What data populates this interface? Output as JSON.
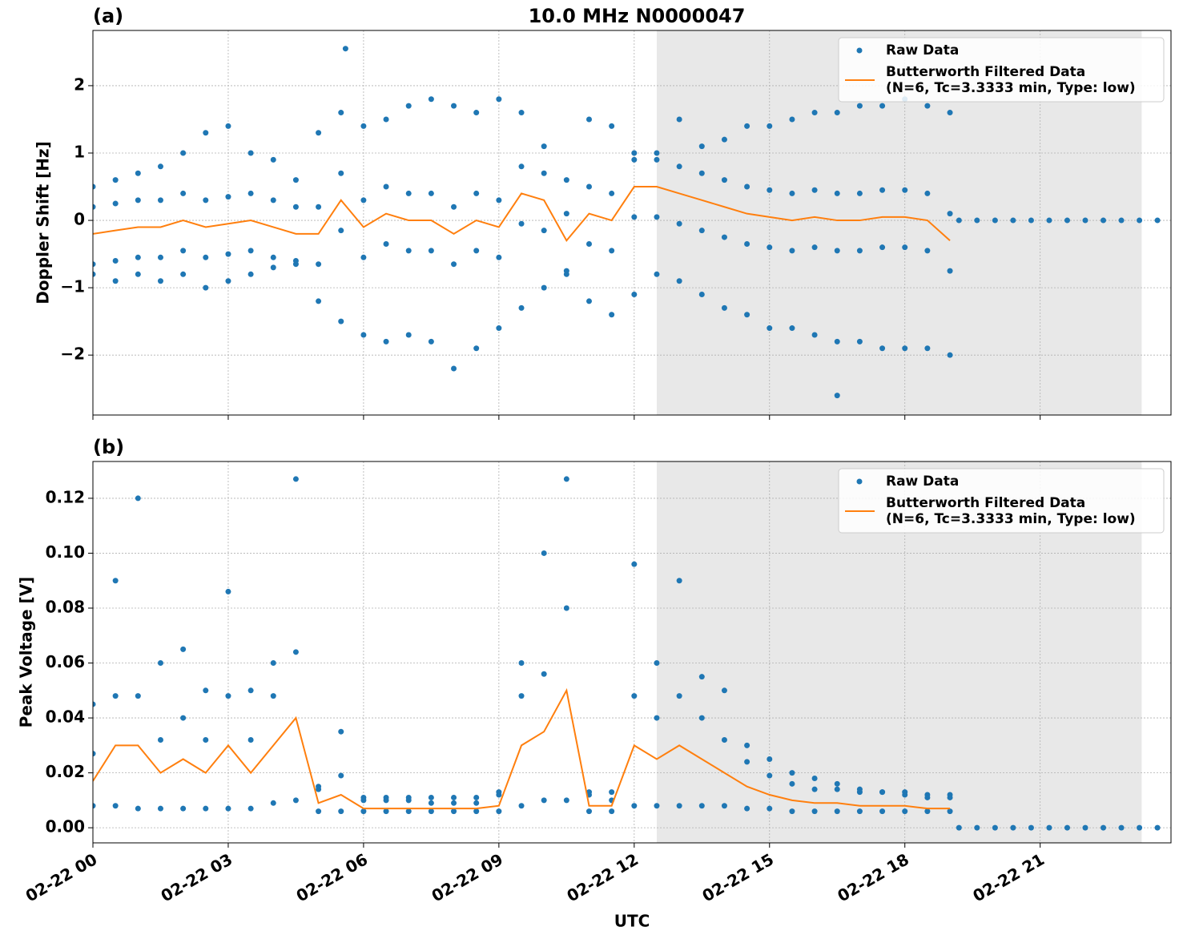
{
  "chart_data": [
    {
      "type": "scatter",
      "panel_label": "(a)",
      "title": "10.0 MHz N0000047",
      "ylabel": "Doppler Shift [Hz]",
      "xlim": [
        0,
        23.9
      ],
      "ylim": [
        -2.89,
        2.82
      ],
      "xticks": [
        0,
        3,
        6,
        9,
        12,
        15,
        18,
        21
      ],
      "yticks": [
        {
          "value": -2,
          "label": "−2"
        },
        {
          "value": -1,
          "label": "−1"
        },
        0,
        1,
        2
      ],
      "grid": true,
      "shaded_span": [
        12.5,
        23.25
      ],
      "shade_color": "#e8e8e8",
      "legend": "upper right",
      "series": [
        {
          "name": "Raw Data",
          "type": "scatter",
          "color": "#1f77b4",
          "x": [
            0,
            0.5,
            1,
            1.5,
            2,
            2.5,
            3,
            3.5,
            4,
            4.5,
            5,
            5.5,
            6,
            6.5,
            7,
            7.5,
            8,
            8.5,
            9,
            9.5,
            10,
            10.5,
            11,
            11.5,
            12,
            12.5,
            13,
            13.5,
            14,
            14.5,
            15,
            15.5,
            16,
            16.5,
            17,
            17.5,
            18,
            18.5,
            19,
            0,
            0.5,
            1,
            1.5,
            2,
            2.5,
            3,
            3.5,
            4,
            4.5,
            5,
            5.5,
            6,
            6.5,
            7,
            7.5,
            8,
            8.5,
            9,
            9.5,
            10,
            10.5,
            11,
            11.5,
            12,
            12.5,
            13,
            13.5,
            14,
            14.5,
            15,
            15.5,
            16,
            16.5,
            17,
            17.5,
            18,
            18.5,
            19,
            0,
            0.5,
            1,
            1.5,
            2,
            2.5,
            3,
            3.5,
            4,
            4.5,
            5,
            5.5,
            6,
            6.5,
            7,
            7.5,
            8,
            8.5,
            9,
            9.5,
            10,
            10.5,
            11,
            11.5,
            12,
            12.5,
            13,
            13.5,
            14,
            14.5,
            15,
            15.5,
            16,
            16.5,
            17,
            17.5,
            18,
            18.5,
            19,
            0,
            0.5,
            1,
            1.5,
            2,
            2.5,
            3,
            3.5,
            4,
            4.5,
            5,
            5.5,
            6,
            6.5,
            7,
            7.5,
            8,
            8.5,
            9,
            9.5,
            10,
            10.5,
            11,
            11.5,
            12,
            12.5,
            13,
            13.5,
            14,
            14.5,
            15,
            15.5,
            16,
            16.5,
            17,
            17.5,
            18,
            18.5,
            19,
            19.2,
            19.6,
            20,
            20.4,
            20.8,
            21.2,
            21.6,
            22,
            22.4,
            22.8,
            23.2,
            23.6,
            5.6,
            16.5
          ],
          "values": [
            0.5,
            0.6,
            0.7,
            0.8,
            1.0,
            1.3,
            1.4,
            1.0,
            0.9,
            0.6,
            1.3,
            1.6,
            1.4,
            1.5,
            1.7,
            1.8,
            1.7,
            1.6,
            1.8,
            1.6,
            1.1,
            0.6,
            1.5,
            1.4,
            1.0,
            1.0,
            1.5,
            1.1,
            1.2,
            1.4,
            1.4,
            1.5,
            1.6,
            1.6,
            1.7,
            1.7,
            1.8,
            1.7,
            1.6,
            0.2,
            0.25,
            0.3,
            0.3,
            0.4,
            0.3,
            0.35,
            0.4,
            0.3,
            0.2,
            0.2,
            0.7,
            0.3,
            0.5,
            0.4,
            0.4,
            0.2,
            0.4,
            0.3,
            0.8,
            0.7,
            0.1,
            0.5,
            0.4,
            0.9,
            0.9,
            0.8,
            0.7,
            0.6,
            0.5,
            0.45,
            0.4,
            0.45,
            0.4,
            0.4,
            0.45,
            0.45,
            0.4,
            0.1,
            -0.65,
            -0.6,
            -0.55,
            -0.55,
            -0.45,
            -0.55,
            -0.5,
            -0.45,
            -0.55,
            -0.65,
            -0.65,
            -0.15,
            -0.55,
            -0.35,
            -0.45,
            -0.45,
            -0.65,
            -0.45,
            -0.55,
            -0.05,
            -0.15,
            -0.75,
            -0.35,
            -0.45,
            0.05,
            0.05,
            -0.05,
            -0.15,
            -0.25,
            -0.35,
            -0.4,
            -0.45,
            -0.4,
            -0.45,
            -0.45,
            -0.4,
            -0.4,
            -0.45,
            -0.75,
            -0.8,
            -0.9,
            -0.8,
            -0.9,
            -0.8,
            -1.0,
            -0.9,
            -0.8,
            -0.7,
            -0.6,
            -1.2,
            -1.5,
            -1.7,
            -1.8,
            -1.7,
            -1.8,
            -2.2,
            -1.9,
            -1.6,
            -1.3,
            -1.0,
            -0.8,
            -1.2,
            -1.4,
            -1.1,
            -0.8,
            -0.9,
            -1.1,
            -1.3,
            -1.4,
            -1.6,
            -1.6,
            -1.7,
            -1.8,
            -1.8,
            -1.9,
            -1.9,
            -1.9,
            -2.0,
            0,
            0,
            0,
            0,
            0,
            0,
            0,
            0,
            0,
            0,
            0,
            0,
            2.55,
            -2.6
          ]
        },
        {
          "name": "Butterworth Filtered Data\n(N=6, Tc=3.3333 min, Type: low)",
          "type": "line",
          "color": "#ff7f0e",
          "x": [
            0,
            0.5,
            1,
            1.5,
            2,
            2.5,
            3,
            3.5,
            4,
            4.5,
            5,
            5.5,
            6,
            6.5,
            7,
            7.5,
            8,
            8.5,
            9,
            9.5,
            10,
            10.5,
            11,
            11.5,
            12,
            12.5,
            13,
            13.5,
            14,
            14.5,
            15,
            15.5,
            16,
            16.5,
            17,
            17.5,
            18,
            18.5,
            19
          ],
          "values": [
            -0.2,
            -0.15,
            -0.1,
            -0.1,
            0,
            -0.1,
            -0.05,
            0,
            -0.1,
            -0.2,
            -0.2,
            0.3,
            -0.1,
            0.1,
            0,
            0,
            -0.2,
            0,
            -0.1,
            0.4,
            0.3,
            -0.3,
            0.1,
            0,
            0.5,
            0.5,
            0.4,
            0.3,
            0.2,
            0.1,
            0.05,
            0,
            0.05,
            0,
            0,
            0.05,
            0.05,
            0,
            -0.3
          ]
        }
      ]
    },
    {
      "type": "scatter",
      "panel_label": "(b)",
      "ylabel": "Peak Voltage [V]",
      "xlabel": "UTC",
      "xlim": [
        0,
        23.9
      ],
      "ylim": [
        -0.0055,
        0.1334
      ],
      "xticks": [
        {
          "value": 0,
          "label": "02-22 00"
        },
        {
          "value": 3,
          "label": "02-22 03"
        },
        {
          "value": 6,
          "label": "02-22 06"
        },
        {
          "value": 9,
          "label": "02-22 09"
        },
        {
          "value": 12,
          "label": "02-22 12"
        },
        {
          "value": 15,
          "label": "02-22 15"
        },
        {
          "value": 18,
          "label": "02-22 18"
        },
        {
          "value": 21,
          "label": "02-22 21"
        }
      ],
      "yticks": [
        {
          "value": 0,
          "label": "0.00"
        },
        {
          "value": 0.02,
          "label": "0.02"
        },
        {
          "value": 0.04,
          "label": "0.04"
        },
        {
          "value": 0.06,
          "label": "0.06"
        },
        {
          "value": 0.08,
          "label": "0.08"
        },
        {
          "value": 0.1,
          "label": "0.10"
        },
        {
          "value": 0.12,
          "label": "0.12"
        }
      ],
      "grid": true,
      "shaded_span": [
        12.5,
        23.25
      ],
      "shade_color": "#e8e8e8",
      "legend": "upper right",
      "series": [
        {
          "name": "Raw Data",
          "type": "scatter",
          "color": "#1f77b4",
          "x": [
            0,
            0.5,
            1,
            1.5,
            2,
            2.5,
            3,
            3.5,
            4,
            4.5,
            5,
            5.5,
            6,
            6.5,
            7,
            7.5,
            8,
            8.5,
            9,
            9.5,
            10,
            10.5,
            11,
            11.5,
            12,
            12.5,
            13,
            13.5,
            14,
            14.5,
            15,
            15.5,
            16,
            16.5,
            17,
            17.5,
            18,
            18.5,
            19,
            0,
            0.5,
            1,
            1.5,
            2,
            2.5,
            3,
            3.5,
            4,
            4.5,
            5,
            5.5,
            6,
            6.5,
            7,
            7.5,
            8,
            8.5,
            9,
            9.5,
            10,
            10.5,
            11,
            11.5,
            12,
            12.5,
            13,
            13.5,
            14,
            14.5,
            15,
            15.5,
            16,
            16.5,
            17,
            17.5,
            18,
            18.5,
            19,
            0,
            0.5,
            1,
            1.5,
            2,
            2.5,
            3,
            3.5,
            4,
            4.5,
            5,
            5.5,
            6,
            6.5,
            7,
            7.5,
            8,
            8.5,
            9,
            9.5,
            10,
            10.5,
            11,
            11.5,
            12,
            12.5,
            13,
            13.5,
            14,
            14.5,
            15,
            15.5,
            16,
            16.5,
            17,
            17.5,
            18,
            18.5,
            19,
            19.2,
            19.6,
            20,
            20.4,
            20.8,
            21.2,
            21.6,
            22,
            22.4,
            22.8,
            23.2,
            23.6
          ],
          "values": [
            0.045,
            0.09,
            0.12,
            0.06,
            0.065,
            0.05,
            0.086,
            0.05,
            0.06,
            0.127,
            0.015,
            0.035,
            0.01,
            0.01,
            0.01,
            0.009,
            0.009,
            0.009,
            0.012,
            0.06,
            0.1,
            0.127,
            0.012,
            0.01,
            0.096,
            0.06,
            0.09,
            0.055,
            0.05,
            0.03,
            0.025,
            0.02,
            0.018,
            0.016,
            0.014,
            0.013,
            0.012,
            0.012,
            0.012,
            0.027,
            0.048,
            0.048,
            0.032,
            0.04,
            0.032,
            0.048,
            0.032,
            0.048,
            0.064,
            0.014,
            0.019,
            0.011,
            0.011,
            0.011,
            0.011,
            0.011,
            0.011,
            0.013,
            0.048,
            0.056,
            0.08,
            0.013,
            0.013,
            0.048,
            0.04,
            0.048,
            0.04,
            0.032,
            0.024,
            0.019,
            0.016,
            0.014,
            0.014,
            0.013,
            0.013,
            0.013,
            0.011,
            0.011,
            0.008,
            0.008,
            0.007,
            0.007,
            0.007,
            0.007,
            0.007,
            0.007,
            0.009,
            0.01,
            0.006,
            0.006,
            0.006,
            0.006,
            0.006,
            0.006,
            0.006,
            0.006,
            0.006,
            0.008,
            0.01,
            0.01,
            0.006,
            0.006,
            0.008,
            0.008,
            0.008,
            0.008,
            0.008,
            0.007,
            0.007,
            0.006,
            0.006,
            0.006,
            0.006,
            0.006,
            0.006,
            0.006,
            0.006,
            0,
            0,
            0,
            0,
            0,
            0,
            0,
            0,
            0,
            0,
            0,
            0
          ]
        },
        {
          "name": "Butterworth Filtered Data\n(N=6, Tc=3.3333 min, Type: low)",
          "type": "line",
          "color": "#ff7f0e",
          "x": [
            0,
            0.5,
            1,
            1.5,
            2,
            2.5,
            3,
            3.5,
            4,
            4.5,
            5,
            5.5,
            6,
            6.5,
            7,
            7.5,
            8,
            8.5,
            9,
            9.5,
            10,
            10.5,
            11,
            11.5,
            12,
            12.5,
            13,
            13.5,
            14,
            14.5,
            15,
            15.5,
            16,
            16.5,
            17,
            17.5,
            18,
            18.5,
            19
          ],
          "values": [
            0.017,
            0.03,
            0.03,
            0.02,
            0.025,
            0.02,
            0.03,
            0.02,
            0.03,
            0.04,
            0.009,
            0.012,
            0.007,
            0.007,
            0.007,
            0.007,
            0.007,
            0.007,
            0.008,
            0.03,
            0.035,
            0.05,
            0.008,
            0.008,
            0.03,
            0.025,
            0.03,
            0.025,
            0.02,
            0.015,
            0.012,
            0.01,
            0.009,
            0.009,
            0.008,
            0.008,
            0.008,
            0.007,
            0.007
          ]
        }
      ]
    }
  ]
}
